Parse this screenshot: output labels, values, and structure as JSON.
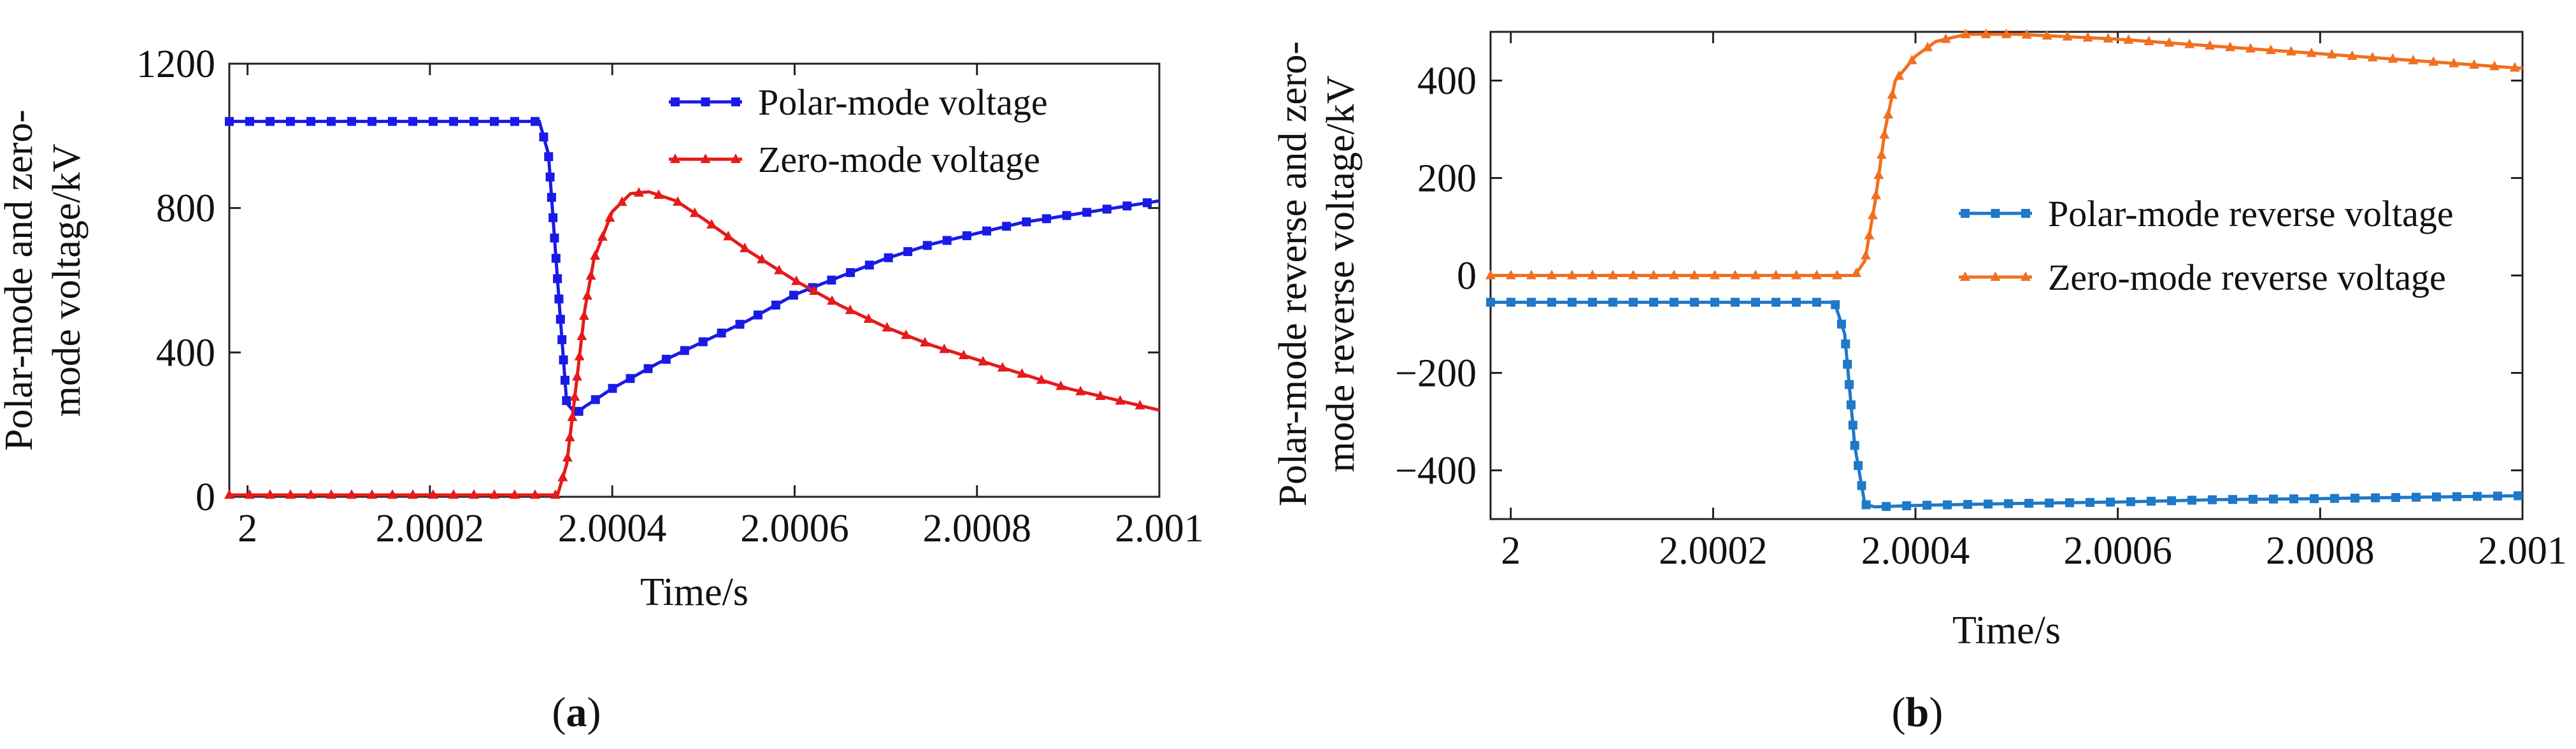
{
  "chart_data": [
    {
      "type": "line",
      "panel_label": "(a)",
      "xlabel": "Time/s",
      "ylabel_lines": [
        "Polar-mode  and zero-",
        "mode voltage/kV"
      ],
      "xlim": [
        1.99998,
        2.001
      ],
      "ylim": [
        0,
        1200
      ],
      "xticks": [
        2,
        2.0002,
        2.0004,
        2.0006,
        2.0008,
        2.001
      ],
      "xtick_labels": [
        "2",
        "2.0002",
        "2.0004",
        "2.0006",
        "2.0008",
        "2.001"
      ],
      "yticks": [
        0,
        400,
        800,
        1200
      ],
      "ytick_labels": [
        "0",
        "400",
        "800",
        "1200"
      ],
      "legend_position": "top-right",
      "grid": false,
      "series": [
        {
          "name": "Polar-mode voltage",
          "color": "#1a1ae6",
          "marker": "square",
          "x": [
            1.99998,
            2.0001,
            2.0002,
            2.00032,
            2.00033,
            2.00034,
            2.00035,
            2.00036,
            2.00037,
            2.0004,
            2.00045,
            2.0005,
            2.00055,
            2.0006,
            2.00065,
            2.0007,
            2.00075,
            2.0008,
            2.00085,
            2.0009,
            2.00095,
            2.001
          ],
          "y": [
            1040,
            1040,
            1040,
            1040,
            950,
            600,
            260,
            230,
            250,
            300,
            370,
            430,
            490,
            560,
            610,
            660,
            700,
            730,
            760,
            780,
            800,
            820
          ]
        },
        {
          "name": "Zero-mode voltage",
          "color": "#e61a1a",
          "marker": "triangle",
          "x": [
            1.99998,
            2.0001,
            2.0002,
            2.00034,
            2.00035,
            2.00036,
            2.00037,
            2.00038,
            2.0004,
            2.00042,
            2.00044,
            2.00047,
            2.0005,
            2.00055,
            2.0006,
            2.00065,
            2.0007,
            2.00075,
            2.0008,
            2.00085,
            2.0009,
            2.00095,
            2.001
          ],
          "y": [
            5,
            5,
            5,
            5,
            90,
            300,
            520,
            660,
            790,
            840,
            845,
            820,
            770,
            680,
            600,
            530,
            470,
            420,
            380,
            340,
            300,
            270,
            240
          ]
        }
      ]
    },
    {
      "type": "line",
      "panel_label": "(b)",
      "xlabel": "Time/s",
      "ylabel_lines": [
        "Polar-mode reverse and zero-",
        "mode reverse voltage/kV"
      ],
      "xlim": [
        1.99998,
        2.001
      ],
      "ylim": [
        -500,
        500
      ],
      "xticks": [
        2,
        2.0002,
        2.0004,
        2.0006,
        2.0008,
        2.001
      ],
      "xtick_labels": [
        "2",
        "2.0002",
        "2.0004",
        "2.0006",
        "2.0008",
        "2.001"
      ],
      "yticks": [
        -400,
        -200,
        0,
        200,
        400
      ],
      "ytick_labels": [
        "−400",
        "−200",
        "0",
        "200",
        "400"
      ],
      "legend_position": "center-right",
      "grid": false,
      "series": [
        {
          "name": "Polar-mode reverse voltage",
          "color": "#1f78c8",
          "marker": "square",
          "x": [
            1.99998,
            2.0001,
            2.0002,
            2.00032,
            2.00033,
            2.00034,
            2.00035,
            2.00036,
            2.0004,
            2.0005,
            2.0006,
            2.0007,
            2.0008,
            2.0009,
            2.001
          ],
          "y": [
            -55,
            -55,
            -55,
            -55,
            -120,
            -350,
            -470,
            -475,
            -472,
            -468,
            -465,
            -460,
            -458,
            -455,
            -452
          ]
        },
        {
          "name": "Zero-mode reverse voltage",
          "color": "#f07020",
          "marker": "triangle",
          "x": [
            1.99998,
            2.0001,
            2.0002,
            2.00034,
            2.00035,
            2.00036,
            2.00037,
            2.00038,
            2.0004,
            2.00042,
            2.00045,
            2.0005,
            2.0006,
            2.0007,
            2.0008,
            2.0009,
            2.001
          ],
          "y": [
            0,
            0,
            0,
            0,
            30,
            150,
            300,
            400,
            450,
            480,
            495,
            495,
            485,
            470,
            455,
            440,
            425
          ]
        }
      ]
    }
  ]
}
